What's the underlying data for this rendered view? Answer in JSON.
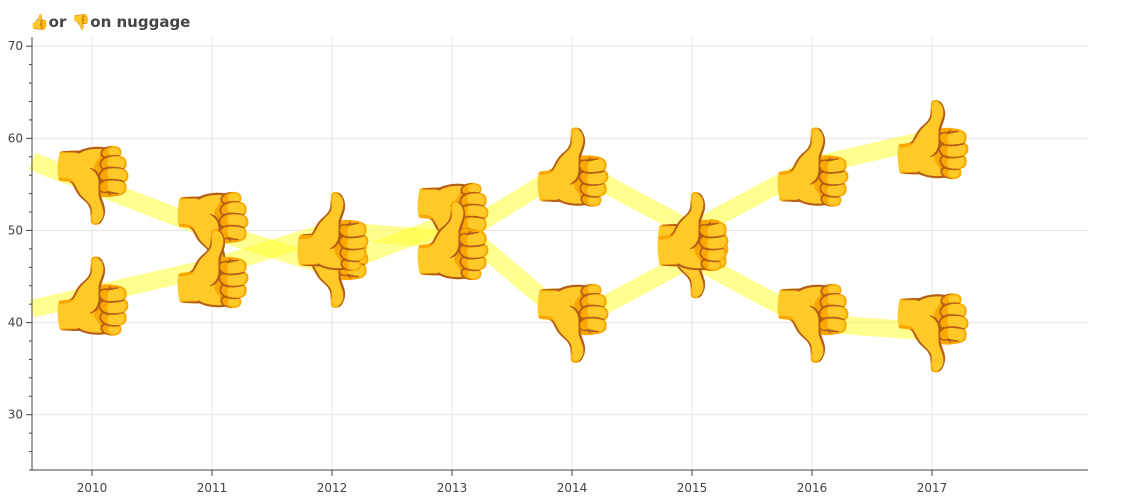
{
  "chart_data": {
    "type": "line",
    "title": "👍or 👎on nuggage",
    "x": [
      2010,
      2011,
      2012,
      2013,
      2014,
      2015,
      2016,
      2017
    ],
    "xlim": [
      2009.5,
      2018.3
    ],
    "ylim": [
      24,
      71
    ],
    "xticks": [
      "2010",
      "2011",
      "2012",
      "2013",
      "2014",
      "2015",
      "2016",
      "2017"
    ],
    "yticks": [
      "30",
      "40",
      "50",
      "60",
      "70"
    ],
    "grid": true,
    "line_color": "#ffff33",
    "series": [
      {
        "marker": "👎",
        "values": [
          55,
          50,
          46,
          51,
          40,
          47,
          40,
          39
        ]
      },
      {
        "marker": "👍",
        "values": [
          43,
          46,
          50,
          49,
          57,
          50,
          57,
          60
        ]
      }
    ]
  }
}
